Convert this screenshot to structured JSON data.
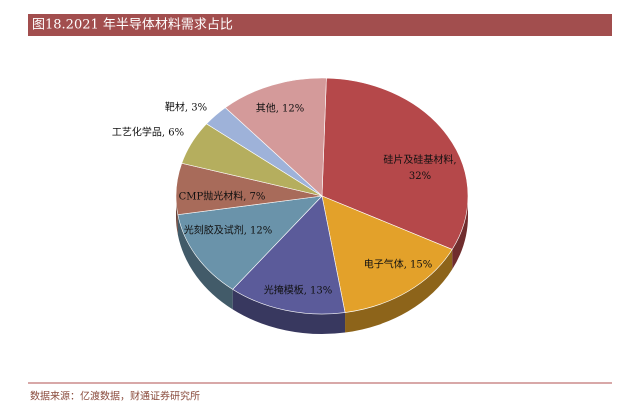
{
  "title": "图18.2021 年半导体材料需求占比",
  "source": "数据来源：亿渡数据，财通证券研究所",
  "chart_data": {
    "type": "pie",
    "values": [
      32,
      15,
      13,
      12,
      7,
      6,
      3,
      12
    ],
    "value_labels": [
      "硅片及硅基材料, 32%",
      "电子气体, 15%",
      "光掩模板, 13%",
      "光刻胶及试剂, 12%",
      "CMP抛光材料, 7%",
      "工艺化学品, 6%",
      "靶材, 3%",
      "其他, 12%"
    ],
    "colors": [
      "#b5484a",
      "#e3a12a",
      "#5b5b9a",
      "#6a93aa",
      "#a86b5a",
      "#b5ae5e",
      "#9eb2d9",
      "#d49a9a"
    ]
  }
}
